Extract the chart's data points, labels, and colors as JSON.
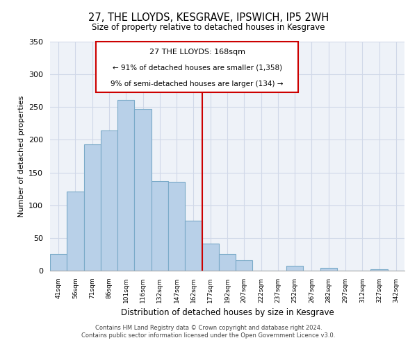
{
  "title": "27, THE LLOYDS, KESGRAVE, IPSWICH, IP5 2WH",
  "subtitle": "Size of property relative to detached houses in Kesgrave",
  "xlabel": "Distribution of detached houses by size in Kesgrave",
  "ylabel": "Number of detached properties",
  "bar_labels": [
    "41sqm",
    "56sqm",
    "71sqm",
    "86sqm",
    "101sqm",
    "116sqm",
    "132sqm",
    "147sqm",
    "162sqm",
    "177sqm",
    "192sqm",
    "207sqm",
    "222sqm",
    "237sqm",
    "252sqm",
    "267sqm",
    "282sqm",
    "297sqm",
    "312sqm",
    "327sqm",
    "342sqm"
  ],
  "bar_values": [
    25,
    121,
    193,
    214,
    261,
    247,
    137,
    136,
    76,
    41,
    25,
    16,
    0,
    0,
    7,
    0,
    4,
    0,
    0,
    2,
    0
  ],
  "bar_color": "#b8d0e8",
  "bar_edge_color": "#7aaac8",
  "ylim": [
    0,
    350
  ],
  "yticks": [
    0,
    50,
    100,
    150,
    200,
    250,
    300,
    350
  ],
  "property_line_x": 8.5,
  "property_line_color": "#cc0000",
  "annotation_title": "27 THE LLOYDS: 168sqm",
  "annotation_line1": "← 91% of detached houses are smaller (1,358)",
  "annotation_line2": "9% of semi-detached houses are larger (134) →",
  "footer1": "Contains HM Land Registry data © Crown copyright and database right 2024.",
  "footer2": "Contains public sector information licensed under the Open Government Licence v3.0.",
  "grid_color": "#d0d8e8",
  "background_color": "#eef2f8"
}
